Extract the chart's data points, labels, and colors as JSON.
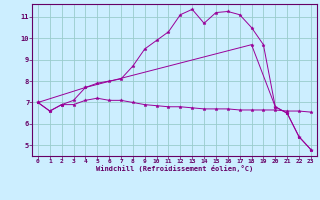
{
  "xlabel": "Windchill (Refroidissement éolien,°C)",
  "bg_color": "#cceeff",
  "line_color": "#990099",
  "grid_color": "#99cccc",
  "axis_color": "#660066",
  "text_color": "#660066",
  "xlim": [
    -0.5,
    23.5
  ],
  "ylim": [
    4.5,
    11.6
  ],
  "xticks": [
    0,
    1,
    2,
    3,
    4,
    5,
    6,
    7,
    8,
    9,
    10,
    11,
    12,
    13,
    14,
    15,
    16,
    17,
    18,
    19,
    20,
    21,
    22,
    23
  ],
  "yticks": [
    5,
    6,
    7,
    8,
    9,
    10,
    11
  ],
  "line1_x": [
    0,
    1,
    2,
    3,
    4,
    5,
    6,
    7,
    8,
    9,
    10,
    11,
    12,
    13,
    14,
    15,
    16,
    17,
    18,
    19,
    20,
    21,
    22,
    23
  ],
  "line1_y": [
    7.0,
    6.6,
    6.9,
    6.9,
    7.1,
    7.2,
    7.1,
    7.1,
    7.0,
    6.9,
    6.85,
    6.8,
    6.8,
    6.75,
    6.7,
    6.7,
    6.7,
    6.65,
    6.65,
    6.65,
    6.65,
    6.6,
    6.6,
    6.55
  ],
  "line2_x": [
    0,
    1,
    2,
    3,
    4,
    5,
    6,
    7,
    8,
    9,
    10,
    11,
    12,
    13,
    14,
    15,
    16,
    17,
    18,
    19,
    20,
    21,
    22,
    23
  ],
  "line2_y": [
    7.0,
    6.6,
    6.9,
    7.1,
    7.7,
    7.9,
    8.0,
    8.1,
    8.7,
    9.5,
    9.9,
    10.3,
    11.1,
    11.35,
    10.7,
    11.2,
    11.25,
    11.1,
    10.5,
    9.7,
    6.8,
    6.5,
    5.4,
    4.8
  ],
  "line3_x": [
    0,
    4,
    18,
    20,
    21,
    22,
    23
  ],
  "line3_y": [
    7.0,
    7.7,
    9.7,
    6.8,
    6.5,
    5.4,
    4.8
  ]
}
